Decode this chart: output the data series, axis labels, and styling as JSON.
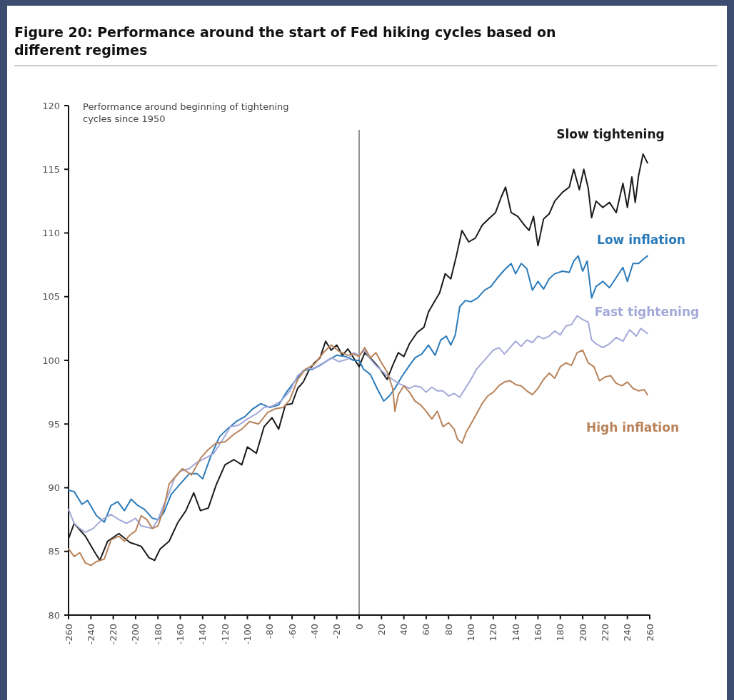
{
  "chart_data": {
    "type": "line",
    "title": "Figure 20: Performance around the start of Fed hiking cycles based on different regimes",
    "annotations": [
      "Performance around beginning of tightening cycles since 1950"
    ],
    "xlim": [
      -260,
      260
    ],
    "xticks": [
      -260,
      -240,
      -220,
      -200,
      -180,
      -160,
      -140,
      -120,
      -100,
      -80,
      -60,
      -40,
      -20,
      0,
      20,
      40,
      60,
      80,
      100,
      120,
      140,
      160,
      180,
      200,
      220,
      240,
      260
    ],
    "ylim": [
      80,
      120
    ],
    "yticks": [
      80,
      85,
      90,
      95,
      100,
      105,
      110,
      115,
      120
    ],
    "grid": false,
    "ref_lines": [
      {
        "axis": "x",
        "value": 0,
        "color": "#707070"
      }
    ],
    "series": [
      {
        "name": "Slow tightening",
        "color": "#1a1a1a",
        "x": [
          -260,
          -255,
          -245,
          -237,
          -232,
          -225,
          -215,
          -205,
          -195,
          -188,
          -183,
          -178,
          -170,
          -162,
          -155,
          -148,
          -142,
          -135,
          -128,
          -120,
          -112,
          -105,
          -100,
          -92,
          -85,
          -78,
          -72,
          -66,
          -60,
          -55,
          -50,
          -45,
          -40,
          -35,
          -30,
          -25,
          -20,
          -15,
          -10,
          -5,
          0,
          5,
          12,
          18,
          25,
          30,
          35,
          40,
          45,
          52,
          58,
          62,
          68,
          72,
          77,
          82,
          87,
          92,
          98,
          104,
          110,
          117,
          122,
          127,
          131,
          136,
          142,
          148,
          152,
          156,
          160,
          165,
          170,
          175,
          182,
          188,
          192,
          197,
          201,
          205,
          208,
          212,
          218,
          224,
          230,
          236,
          240,
          244,
          247,
          250,
          254,
          258
        ],
        "values": [
          86,
          87.2,
          86.2,
          85,
          84.3,
          85.8,
          86.4,
          85.7,
          85.4,
          84.5,
          84.3,
          85.2,
          85.8,
          87.3,
          88.2,
          89.6,
          88.2,
          88.4,
          90.2,
          91.8,
          92.2,
          91.8,
          93.2,
          92.7,
          94.8,
          95.5,
          94.6,
          96.5,
          96.6,
          97.8,
          98.3,
          99.2,
          99.8,
          100.2,
          101.5,
          100.8,
          101.2,
          100.4,
          100.9,
          100.2,
          99.5,
          100.6,
          100,
          99.4,
          98.5,
          99.6,
          100.6,
          100.3,
          101.3,
          102.2,
          102.6,
          103.8,
          104.7,
          105.3,
          106.8,
          106.4,
          108.2,
          110.2,
          109.3,
          109.6,
          110.6,
          111.2,
          111.6,
          112.8,
          113.6,
          111.6,
          111.3,
          110.6,
          110.2,
          111.3,
          109,
          111.1,
          111.5,
          112.5,
          113.2,
          113.6,
          115,
          113.4,
          115,
          113.5,
          111.2,
          112.5,
          112,
          112.4,
          111.6,
          113.9,
          112,
          114.4,
          112.4,
          114.5,
          116.2,
          115.5
        ]
      },
      {
        "name": "Low inflation",
        "color": "#2b7bba",
        "x": [
          -260,
          -255,
          -248,
          -243,
          -235,
          -228,
          -222,
          -216,
          -210,
          -204,
          -198,
          -192,
          -185,
          -180,
          -175,
          -168,
          -160,
          -152,
          -145,
          -140,
          -133,
          -125,
          -118,
          -110,
          -102,
          -95,
          -88,
          -80,
          -72,
          -65,
          -58,
          -50,
          -42,
          -35,
          -28,
          -20,
          -12,
          -5,
          0,
          4,
          10,
          16,
          22,
          27,
          32,
          38,
          45,
          50,
          56,
          62,
          68,
          73,
          78,
          82,
          86,
          90,
          95,
          100,
          106,
          112,
          118,
          124,
          130,
          136,
          140,
          145,
          150,
          155,
          160,
          165,
          170,
          175,
          182,
          188,
          192,
          196,
          200,
          204,
          208,
          212,
          218,
          224,
          230,
          236,
          240,
          245,
          250,
          255,
          258
        ],
        "values": [
          89.8,
          89.7,
          88.7,
          89,
          87.8,
          87.3,
          88.6,
          88.9,
          88.2,
          89.1,
          88.6,
          88.3,
          87.6,
          87.5,
          88,
          89.5,
          90.3,
          91.1,
          91.1,
          90.7,
          92.4,
          94,
          94.6,
          95.2,
          95.6,
          96.2,
          96.6,
          96.3,
          96.5,
          97.5,
          98.3,
          99.2,
          99.3,
          99.6,
          100,
          100.4,
          100.3,
          100,
          100,
          99.3,
          98.9,
          97.8,
          96.8,
          97.2,
          97.8,
          98.7,
          99.6,
          100.2,
          100.5,
          101.2,
          100.4,
          101.6,
          101.9,
          101.2,
          102,
          104.2,
          104.7,
          104.6,
          104.9,
          105.5,
          105.8,
          106.5,
          107.1,
          107.6,
          106.8,
          107.6,
          107.2,
          105.5,
          106.2,
          105.6,
          106.4,
          106.8,
          107,
          106.9,
          107.8,
          108.2,
          107,
          107.8,
          104.9,
          105.8,
          106.2,
          105.7,
          106.5,
          107.3,
          106.2,
          107.6,
          107.6,
          108,
          108.2
        ]
      },
      {
        "name": "Fast tightening",
        "color": "#a3a9d9",
        "x": [
          -260,
          -255,
          -250,
          -245,
          -238,
          -230,
          -222,
          -215,
          -208,
          -200,
          -195,
          -190,
          -185,
          -180,
          -175,
          -170,
          -165,
          -160,
          -152,
          -145,
          -138,
          -130,
          -122,
          -115,
          -108,
          -100,
          -92,
          -85,
          -78,
          -70,
          -62,
          -55,
          -48,
          -40,
          -32,
          -25,
          -18,
          -10,
          -5,
          0,
          5,
          10,
          15,
          20,
          25,
          30,
          35,
          40,
          45,
          50,
          55,
          60,
          65,
          70,
          75,
          80,
          85,
          90,
          95,
          100,
          105,
          110,
          115,
          120,
          125,
          130,
          135,
          140,
          145,
          150,
          155,
          160,
          165,
          170,
          175,
          180,
          185,
          190,
          195,
          200,
          205,
          208,
          212,
          218,
          224,
          230,
          236,
          242,
          248,
          252,
          258
        ],
        "values": [
          88.3,
          87.2,
          86.8,
          86.5,
          86.8,
          87.5,
          87.9,
          87.5,
          87.2,
          87.6,
          87,
          86.9,
          86.8,
          87.5,
          88.6,
          89.6,
          90.8,
          91.3,
          91.5,
          92,
          92.3,
          92.7,
          93.8,
          94.8,
          94.9,
          95.4,
          95.8,
          96.3,
          96.4,
          96.8,
          97.6,
          98.8,
          99.3,
          99.4,
          99.8,
          100.2,
          99.9,
          100.1,
          100.6,
          100.4,
          100.8,
          100.1,
          99.6,
          99.2,
          98.8,
          98.5,
          98.2,
          98,
          97.8,
          98,
          97.9,
          97.5,
          97.9,
          97.6,
          97.6,
          97.2,
          97.4,
          97.1,
          97.8,
          98.5,
          99.3,
          99.8,
          100.3,
          100.8,
          101,
          100.5,
          101,
          101.5,
          101.1,
          101.6,
          101.4,
          101.9,
          101.7,
          101.9,
          102.3,
          102,
          102.7,
          102.8,
          103.5,
          103.2,
          103,
          101.6,
          101.3,
          101,
          101.3,
          101.8,
          101.5,
          102.4,
          101.9,
          102.5,
          102.1
        ]
      },
      {
        "name": "High inflation",
        "color": "#b8835a",
        "x": [
          -260,
          -255,
          -250,
          -245,
          -240,
          -235,
          -228,
          -222,
          -215,
          -210,
          -205,
          -200,
          -195,
          -190,
          -185,
          -180,
          -175,
          -170,
          -165,
          -158,
          -150,
          -142,
          -135,
          -128,
          -120,
          -112,
          -105,
          -98,
          -90,
          -82,
          -75,
          -68,
          -62,
          -55,
          -48,
          -40,
          -32,
          -25,
          -18,
          -10,
          -5,
          0,
          5,
          10,
          15,
          20,
          25,
          30,
          32,
          35,
          40,
          45,
          50,
          55,
          60,
          65,
          70,
          75,
          80,
          85,
          88,
          92,
          96,
          100,
          105,
          110,
          115,
          120,
          125,
          130,
          135,
          140,
          145,
          150,
          155,
          160,
          165,
          170,
          175,
          180,
          185,
          190,
          195,
          200,
          205,
          210,
          215,
          220,
          225,
          230,
          235,
          240,
          245,
          250,
          255,
          258
        ],
        "values": [
          85.2,
          84.6,
          84.9,
          84.1,
          83.9,
          84.2,
          84.4,
          85.9,
          86.2,
          85.8,
          86.3,
          86.6,
          87.8,
          87.5,
          86.8,
          87,
          88.3,
          90.3,
          90.8,
          91.5,
          91,
          92.3,
          93,
          93.5,
          93.6,
          94.2,
          94.6,
          95.2,
          95,
          95.9,
          96.2,
          96.3,
          96.9,
          98.5,
          99.3,
          99.7,
          100.6,
          101.2,
          100.7,
          100.4,
          100.5,
          100.3,
          101,
          100.2,
          100.6,
          99.8,
          99.1,
          97.8,
          96,
          97.3,
          98,
          97.5,
          96.8,
          96.5,
          96,
          95.4,
          96,
          94.8,
          95.1,
          94.6,
          93.8,
          93.5,
          94.4,
          95,
          95.8,
          96.6,
          97.2,
          97.5,
          98,
          98.3,
          98.4,
          98.1,
          98,
          97.6,
          97.3,
          97.8,
          98.5,
          99,
          98.6,
          99.5,
          99.8,
          99.6,
          100.6,
          100.8,
          99.8,
          99.5,
          98.4,
          98.7,
          98.8,
          98.2,
          98,
          98.3,
          97.8,
          97.6,
          97.7,
          97.3
        ]
      }
    ]
  }
}
